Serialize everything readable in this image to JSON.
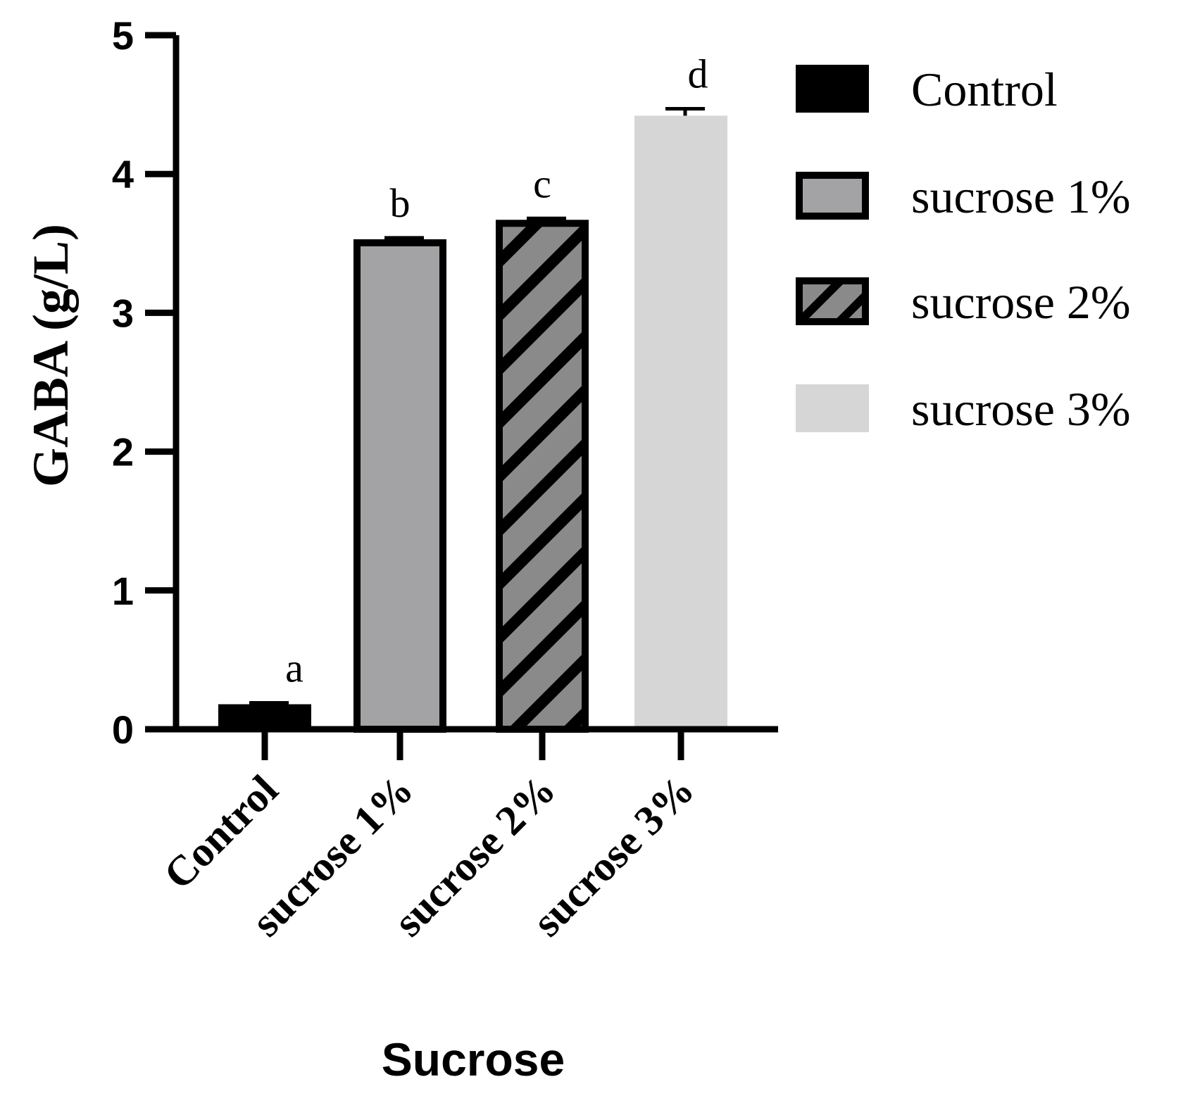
{
  "chart_data": {
    "type": "bar",
    "title": "",
    "xlabel": "Sucrose",
    "ylabel": "GABA (g/L)",
    "ylim": [
      0,
      5
    ],
    "yticks": [
      "0",
      "1",
      "2",
      "3",
      "4",
      "5"
    ],
    "categories": [
      "Control",
      "sucrose 1%",
      "sucrose 2%",
      "sucrose 3%"
    ],
    "values": [
      0.18,
      3.53,
      3.67,
      4.42
    ],
    "errors": [
      0.01,
      0.01,
      0.01,
      0.05
    ],
    "significance": [
      "a",
      "b",
      "c",
      "d"
    ],
    "legend": {
      "position": "right",
      "entries": [
        "Control",
        "sucrose 1%",
        "sucrose 2%",
        "sucrose 3%"
      ]
    },
    "colors": [
      "#000000",
      "#a3a3a6",
      "#8a8a8a",
      "#d6d6d6"
    ]
  }
}
